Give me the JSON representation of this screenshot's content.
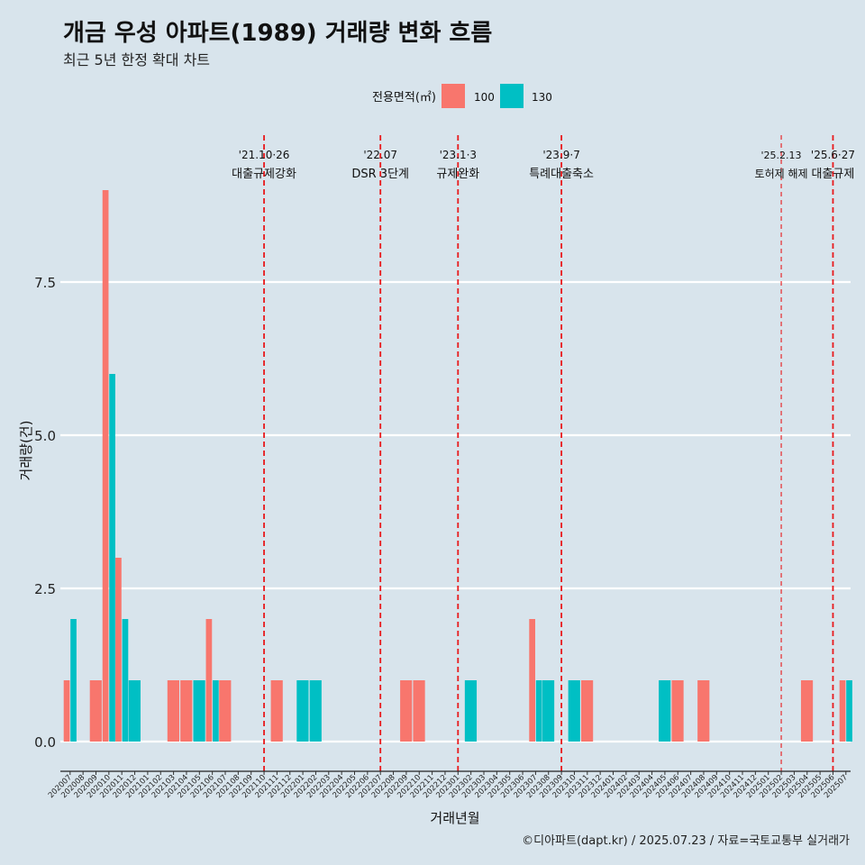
{
  "chart_data": {
    "type": "bar",
    "title": "개금 우성 아파트(1989) 거래량 변화 흐름",
    "subtitle": "최근 5년 한정 확대 차트",
    "xlabel": "거래년월",
    "ylabel": "거래량(건)",
    "ylim": [
      -0.3,
      9.5
    ],
    "yticks": [
      0.0,
      2.5,
      5.0,
      7.5
    ],
    "ytick_labels": [
      "0.0",
      "2.5",
      "5.0",
      "7.5"
    ],
    "legend": {
      "title": "전용면적(㎡)",
      "placement": "top-center",
      "entries": [
        {
          "name": "100",
          "color": "#f8766d"
        },
        {
          "name": "130",
          "color": "#00bfc4"
        }
      ]
    },
    "categories": [
      "202007",
      "202008",
      "202009",
      "202010",
      "202011",
      "202012",
      "202101",
      "202102",
      "202103",
      "202104",
      "202105",
      "202106",
      "202107",
      "202108",
      "202109",
      "202110",
      "202111",
      "202112",
      "202201",
      "202202",
      "202203",
      "202204",
      "202205",
      "202206",
      "202207",
      "202208",
      "202209",
      "202210",
      "202211",
      "202212",
      "202301",
      "202302",
      "202303",
      "202304",
      "202305",
      "202306",
      "202307",
      "202308",
      "202309",
      "202310",
      "202311",
      "202312",
      "202401",
      "202402",
      "202403",
      "202404",
      "202405",
      "202406",
      "202407",
      "202408",
      "202409",
      "202410",
      "202411",
      "202412",
      "202501",
      "202502",
      "202503",
      "202504",
      "202505",
      "202506",
      "202507"
    ],
    "series": [
      {
        "name": "100",
        "color": "#f8766d",
        "values": [
          1,
          0,
          1,
          9,
          3,
          0,
          0,
          0,
          1,
          1,
          0,
          2,
          1,
          0,
          0,
          0,
          1,
          0,
          0,
          0,
          0,
          0,
          0,
          0,
          0,
          0,
          1,
          1,
          0,
          0,
          0,
          0,
          0,
          0,
          0,
          0,
          2,
          0,
          0,
          0,
          1,
          0,
          0,
          0,
          0,
          0,
          0,
          1,
          0,
          1,
          0,
          0,
          0,
          0,
          0,
          0,
          0,
          1,
          0,
          0,
          1
        ]
      },
      {
        "name": "130",
        "color": "#00bfc4",
        "values": [
          2,
          0,
          0,
          6,
          2,
          1,
          0,
          0,
          0,
          0,
          1,
          1,
          0,
          0,
          0,
          0,
          0,
          0,
          1,
          1,
          0,
          0,
          0,
          0,
          0,
          0,
          0,
          0,
          0,
          0,
          0,
          1,
          0,
          0,
          0,
          0,
          1,
          1,
          0,
          1,
          0,
          0,
          0,
          0,
          0,
          0,
          1,
          0,
          0,
          0,
          0,
          0,
          0,
          0,
          0,
          0,
          0,
          0,
          0,
          0,
          1
        ]
      }
    ],
    "annotations": [
      {
        "category": "202110",
        "date": "'21.10·26",
        "label": "대출규제강화",
        "style": "thick"
      },
      {
        "category": "202207",
        "date": "'22.07",
        "label": "DSR 3단계",
        "style": "thick"
      },
      {
        "category": "202301",
        "date": "'23.1·3",
        "label": "규제완화",
        "style": "thick"
      },
      {
        "category": "202309",
        "date": "'23.9·7",
        "label": "특례대출축소",
        "style": "thick"
      },
      {
        "category": "202502",
        "date": "'25.2.13",
        "label": "토허제 해제",
        "style": "thin"
      },
      {
        "category": "202506",
        "date": "'25.6·27",
        "label": "대출규제",
        "style": "thick"
      }
    ]
  },
  "caption": "©디아파트(dapt.kr) / 2025.07.23 / 자료=국토교통부 실거래가"
}
